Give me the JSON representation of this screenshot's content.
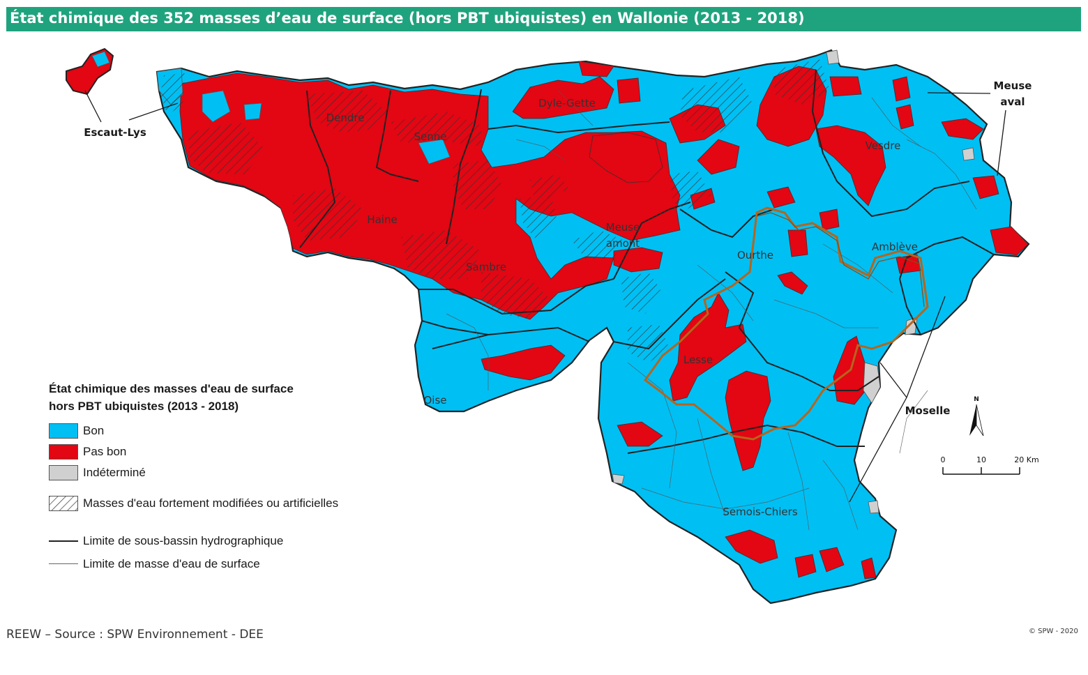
{
  "title": "État chimique des 352 masses d’eau de surface (hors PBT ubiquistes) en Wallonie (2013 - 2018)",
  "colors": {
    "title_bar": "#1fa37e",
    "bon": "#00bff3",
    "pas_bon": "#e30613",
    "indetermine": "#d0d0d0",
    "sub_basin_border": "#222222",
    "water_body_border": "#555555",
    "hatch": "#333333",
    "highlight_outline": "#b5651d"
  },
  "region_labels": {
    "dendre": "Dendre",
    "senne": "Senne",
    "dyle_gette": "Dyle-Gette",
    "haine": "Haine",
    "meuse_amont_1": "Meuse",
    "meuse_amont_2": "amont",
    "sambre": "Sambre",
    "ourthe": "Ourthe",
    "vesdre": "Vesdre",
    "ambleve": "Amblève",
    "lesse": "Lesse",
    "oise": "Oise",
    "semois_chiers": "Semois-Chiers"
  },
  "callouts": {
    "escaut_lys": "Escaut-Lys",
    "meuse_aval_1": "Meuse",
    "meuse_aval_2": "aval",
    "moselle": "Moselle"
  },
  "legend": {
    "title_line1": "État chimique des masses d'eau de surface",
    "title_line2": "hors PBT ubiquistes (2013 - 2018)",
    "bon": "Bon",
    "pas_bon": "Pas bon",
    "indetermine": "Indéterminé",
    "fortement_modifiees": "Masses d'eau fortement modifiées ou artificielles",
    "sous_bassin": "Limite de sous-bassin hydrographique",
    "masse_eau": "Limite de masse d'eau de surface"
  },
  "north_arrow": "N",
  "scale": {
    "ticks": [
      "0",
      "10",
      "20 Km"
    ]
  },
  "source": "REEW – Source : SPW Environnement - DEE",
  "copyright": "© SPW - 2020"
}
